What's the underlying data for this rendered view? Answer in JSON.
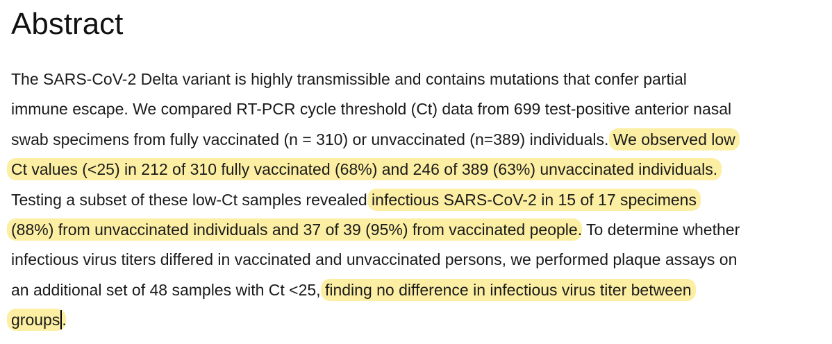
{
  "heading": "Abstract",
  "lines": [
    [
      {
        "text": "The SARS-CoV-2 Delta variant is highly transmissible and contains mutations that confer partial",
        "highlight": false
      }
    ],
    [
      {
        "text": "immune escape. We compared RT-PCR cycle threshold (Ct) data from 699 test-positive anterior nasal",
        "highlight": false
      }
    ],
    [
      {
        "text": "swab specimens from fully vaccinated (n = 310) or unvaccinated (n=389) individuals. ",
        "highlight": false
      },
      {
        "text": "We observed low",
        "highlight": true
      }
    ],
    [
      {
        "text": "Ct values (<25) in 212 of 310 fully vaccinated (68%) and 246 of 389 (63%) unvaccinated individuals.",
        "highlight": true
      }
    ],
    [
      {
        "text": "Testing a subset of these low-Ct samples revealed ",
        "highlight": false
      },
      {
        "text": "infectious SARS-CoV-2 in 15 of 17 specimens",
        "highlight": true
      }
    ],
    [
      {
        "text": "(88%) from unvaccinated individuals and 37 of 39 (95%) from vaccinated people",
        "highlight": true
      },
      {
        "text": ". To determine whether",
        "highlight": false
      }
    ],
    [
      {
        "text": "infectious virus titers differed in vaccinated and unvaccinated persons, we performed plaque assays on",
        "highlight": false
      }
    ],
    [
      {
        "text": "an additional set of 48 samples with Ct <25, ",
        "highlight": false
      },
      {
        "text": "finding no difference in infectious virus titer between",
        "highlight": true
      }
    ],
    [
      {
        "text": "groups",
        "highlight": true,
        "caret_after": true
      },
      {
        "text": ".",
        "highlight": false
      }
    ]
  ]
}
